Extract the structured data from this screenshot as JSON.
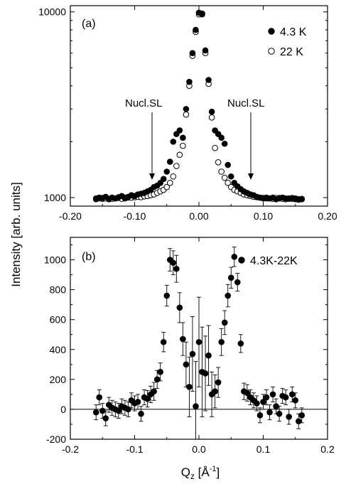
{
  "figure": {
    "ylabel": "Intensity [arb. units]",
    "xlabel_base": "Q",
    "xlabel_sub": "z",
    "xlabel_unit_open": " [Å",
    "xlabel_unit_sup": "-1",
    "xlabel_unit_close": "]"
  },
  "chart_data": [
    {
      "type": "scatter",
      "panel_label": "(a)",
      "y_scale": "log",
      "xlim": [
        -0.2,
        0.2
      ],
      "ylim": [
        900,
        10800
      ],
      "x_ticks": [
        -0.2,
        -0.1,
        0.0,
        0.1,
        0.2
      ],
      "x_tick_labels": [
        "-0.20",
        "-0.10",
        "0.00",
        "0.10",
        "0.20"
      ],
      "y_ticks": [
        1000,
        10000
      ],
      "y_tick_labels": [
        "1000",
        "10000"
      ],
      "legend_placement": "top-right",
      "annotations": [
        {
          "text": "Nucl.SL",
          "x": -0.075,
          "y": 1040
        },
        {
          "text": "Nucl.SL",
          "x": 0.075,
          "y": 1040
        }
      ],
      "series": [
        {
          "name": "4.3 K",
          "marker": "filled-circle",
          "x": [
            -0.16,
            -0.155,
            -0.15,
            -0.145,
            -0.14,
            -0.135,
            -0.13,
            -0.125,
            -0.12,
            -0.115,
            -0.11,
            -0.105,
            -0.1,
            -0.095,
            -0.09,
            -0.085,
            -0.08,
            -0.075,
            -0.07,
            -0.065,
            -0.06,
            -0.055,
            -0.05,
            -0.045,
            -0.04,
            -0.035,
            -0.03,
            -0.025,
            -0.02,
            -0.015,
            -0.01,
            -0.005,
            0.0,
            0.005,
            0.01,
            0.015,
            0.02,
            0.025,
            0.03,
            0.035,
            0.04,
            0.045,
            0.05,
            0.055,
            0.06,
            0.065,
            0.07,
            0.075,
            0.08,
            0.085,
            0.09,
            0.095,
            0.1,
            0.105,
            0.11,
            0.115,
            0.12,
            0.125,
            0.13,
            0.135,
            0.14,
            0.145,
            0.15,
            0.155,
            0.16
          ],
          "y": [
            990,
            1000,
            995,
            1010,
            985,
            1000,
            990,
            1005,
            1020,
            1000,
            1010,
            1030,
            1020,
            1040,
            1050,
            1060,
            1080,
            1100,
            1140,
            1160,
            1200,
            1260,
            1380,
            1560,
            2000,
            2200,
            2300,
            2100,
            3000,
            4200,
            6000,
            8000,
            9900,
            9800,
            6200,
            4300,
            2900,
            2300,
            2200,
            2100,
            1950,
            1500,
            1300,
            1200,
            1150,
            1110,
            1080,
            1060,
            1040,
            1030,
            1010,
            1000,
            990,
            1000,
            990,
            1000,
            980,
            995,
            1000,
            990,
            985,
            995,
            990,
            980,
            985
          ]
        },
        {
          "name": "22 K",
          "marker": "open-circle",
          "x": [
            -0.16,
            -0.155,
            -0.15,
            -0.145,
            -0.14,
            -0.135,
            -0.13,
            -0.125,
            -0.12,
            -0.115,
            -0.11,
            -0.105,
            -0.1,
            -0.095,
            -0.09,
            -0.085,
            -0.08,
            -0.075,
            -0.07,
            -0.065,
            -0.06,
            -0.055,
            -0.05,
            -0.045,
            -0.04,
            -0.035,
            -0.03,
            -0.025,
            -0.02,
            -0.015,
            -0.01,
            -0.005,
            0.0,
            0.005,
            0.01,
            0.015,
            0.02,
            0.025,
            0.03,
            0.035,
            0.04,
            0.045,
            0.05,
            0.055,
            0.06,
            0.065,
            0.07,
            0.075,
            0.08,
            0.085,
            0.09,
            0.095,
            0.1,
            0.105,
            0.11,
            0.115,
            0.12,
            0.125,
            0.13,
            0.135,
            0.14,
            0.145,
            0.15,
            0.155,
            0.16
          ],
          "y": [
            980,
            990,
            985,
            990,
            980,
            985,
            990,
            995,
            985,
            990,
            1000,
            1000,
            1005,
            1010,
            1005,
            1015,
            1020,
            1030,
            1040,
            1060,
            1080,
            1100,
            1140,
            1200,
            1300,
            1480,
            1700,
            1900,
            2800,
            4000,
            5800,
            7800,
            9700,
            9700,
            6000,
            4100,
            2700,
            1850,
            1550,
            1380,
            1280,
            1200,
            1140,
            1100,
            1080,
            1060,
            1040,
            1030,
            1020,
            1010,
            1005,
            1000,
            995,
            990,
            990,
            985,
            995,
            990,
            985,
            980,
            990,
            985,
            980,
            975,
            980
          ]
        }
      ]
    },
    {
      "type": "scatter",
      "panel_label": "(b)",
      "y_scale": "linear",
      "xlim": [
        -0.2,
        0.2
      ],
      "ylim": [
        -200,
        1150
      ],
      "x_ticks": [
        -0.2,
        -0.1,
        0.0,
        0.1,
        0.2
      ],
      "x_tick_labels": [
        "-0.2",
        "-0.1",
        "0.0",
        "0.1",
        "0.2"
      ],
      "y_ticks": [
        -200,
        0,
        200,
        400,
        600,
        800,
        1000
      ],
      "y_tick_labels": [
        "-200",
        "0",
        "200",
        "400",
        "600",
        "800",
        "1000"
      ],
      "zero_line": true,
      "legend_placement": "top-right",
      "series": [
        {
          "name": "4.3K-22K",
          "marker": "filled-circle",
          "error_bars": true,
          "x": [
            -0.16,
            -0.155,
            -0.15,
            -0.145,
            -0.14,
            -0.135,
            -0.13,
            -0.125,
            -0.12,
            -0.115,
            -0.11,
            -0.105,
            -0.1,
            -0.095,
            -0.09,
            -0.085,
            -0.08,
            -0.075,
            -0.07,
            -0.065,
            -0.06,
            -0.055,
            -0.05,
            -0.045,
            -0.04,
            -0.035,
            -0.03,
            -0.025,
            -0.02,
            -0.015,
            -0.01,
            -0.005,
            0.0,
            0.005,
            0.01,
            0.015,
            0.02,
            0.025,
            0.03,
            0.035,
            0.04,
            0.045,
            0.05,
            0.055,
            0.06,
            0.065,
            0.07,
            0.075,
            0.08,
            0.085,
            0.09,
            0.095,
            0.1,
            0.105,
            0.11,
            0.115,
            0.12,
            0.125,
            0.13,
            0.135,
            0.14,
            0.145,
            0.15,
            0.155,
            0.16
          ],
          "y": [
            -20,
            80,
            -10,
            -60,
            30,
            10,
            0,
            -10,
            20,
            10,
            0,
            60,
            40,
            50,
            -30,
            80,
            70,
            100,
            120,
            200,
            250,
            450,
            760,
            1000,
            980,
            940,
            680,
            470,
            300,
            150,
            370,
            20,
            450,
            250,
            240,
            360,
            100,
            120,
            180,
            450,
            580,
            760,
            880,
            1020,
            850,
            440,
            120,
            110,
            80,
            60,
            40,
            -40,
            50,
            80,
            -20,
            100,
            20,
            -30,
            90,
            80,
            -50,
            100,
            60,
            -80,
            -40
          ],
          "yerr": [
            50,
            50,
            50,
            50,
            50,
            50,
            50,
            50,
            50,
            50,
            50,
            50,
            50,
            50,
            50,
            50,
            55,
            55,
            60,
            60,
            60,
            65,
            70,
            75,
            80,
            90,
            100,
            110,
            150,
            200,
            250,
            300,
            300,
            300,
            250,
            200,
            150,
            110,
            100,
            90,
            80,
            75,
            70,
            65,
            60,
            60,
            55,
            55,
            50,
            50,
            50,
            50,
            50,
            50,
            50,
            50,
            50,
            50,
            50,
            50,
            50,
            50,
            50,
            50,
            50
          ]
        }
      ]
    }
  ]
}
